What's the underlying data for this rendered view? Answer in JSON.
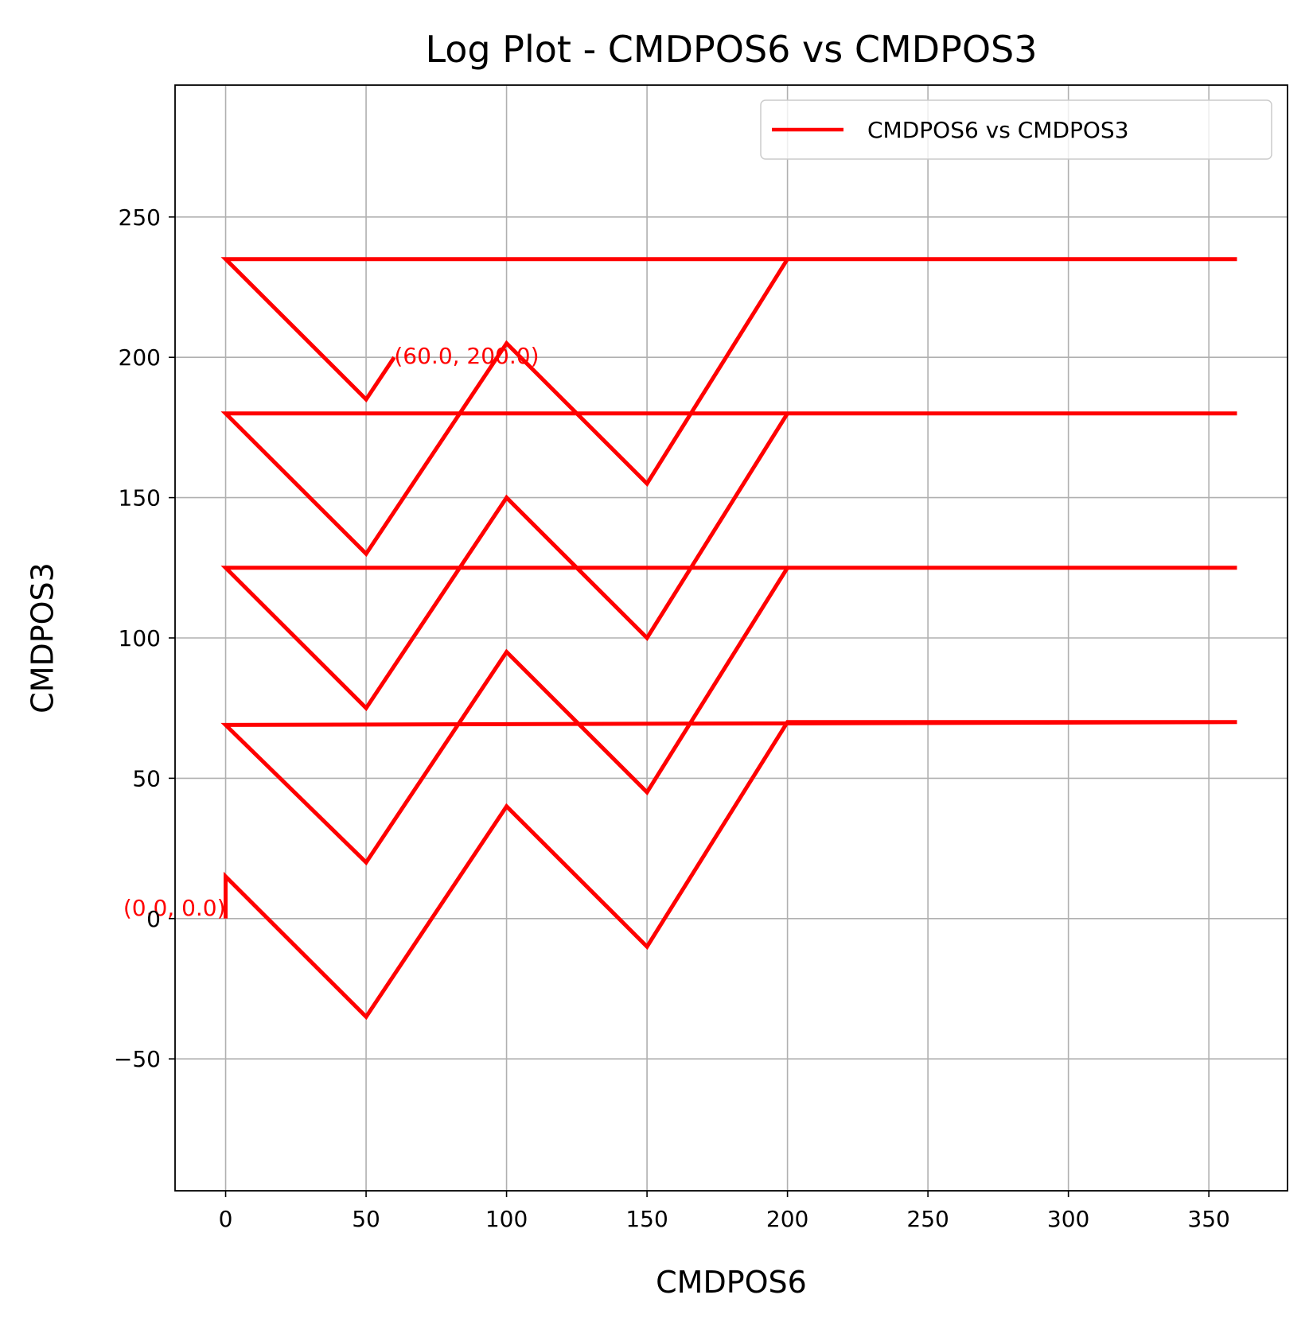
{
  "chart_data": {
    "type": "line",
    "title": "Log Plot - CMDPOS6 vs CMDPOS3",
    "xlabel": "CMDPOS6",
    "ylabel": "CMDPOS3",
    "xlim": [
      -18,
      378
    ],
    "ylim": [
      -97,
      297
    ],
    "xticks": [
      0,
      50,
      100,
      150,
      200,
      250,
      300,
      350
    ],
    "yticks": [
      -50,
      0,
      50,
      100,
      150,
      200,
      250
    ],
    "xtick_labels": [
      "0",
      "50",
      "100",
      "150",
      "200",
      "250",
      "300",
      "350"
    ],
    "ytick_labels": [
      "−50",
      "0",
      "50",
      "100",
      "150",
      "200",
      "250"
    ],
    "grid": true,
    "legend_position": "top-right",
    "series": [
      {
        "name": "CMDPOS6 vs CMDPOS3",
        "color": "#ff0000",
        "x": [
          0,
          0,
          50,
          100,
          150,
          200,
          360,
          0,
          50,
          100,
          150,
          200,
          360,
          0,
          50,
          100,
          150,
          200,
          360,
          0,
          50,
          100,
          150,
          200,
          360,
          0,
          50,
          60
        ],
        "y": [
          0,
          15,
          -35,
          40,
          -10,
          70,
          70,
          69,
          20,
          95,
          45,
          125,
          125,
          125,
          75,
          150,
          100,
          180,
          180,
          180,
          130,
          205,
          155,
          235,
          235,
          235,
          185,
          200
        ]
      }
    ],
    "annotations": [
      {
        "text": "(0.0, 0.0)",
        "x": 0,
        "y": 0,
        "color": "#ff0000"
      },
      {
        "text": "(60.0, 200.0)",
        "x": 60,
        "y": 200,
        "color": "#ff0000"
      }
    ]
  }
}
